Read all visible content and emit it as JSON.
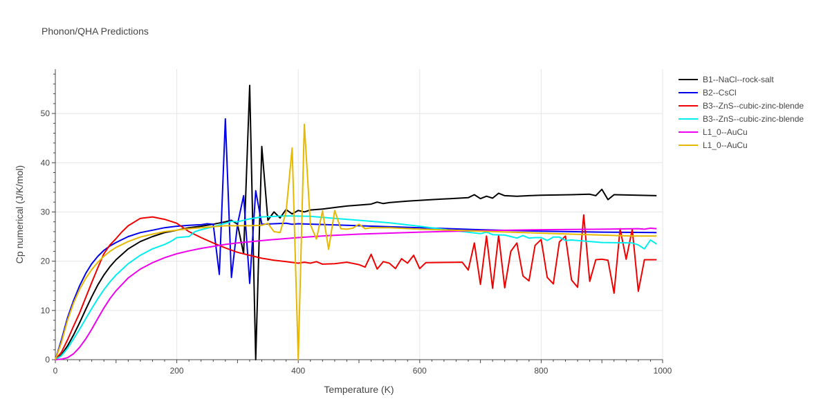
{
  "chart_data": {
    "type": "line",
    "title": "Phonon/QHA Predictions",
    "xlabel": "Temperature (K)",
    "ylabel": "Cp numerical (J/K/mol)",
    "xlim": [
      0,
      1000
    ],
    "ylim": [
      0,
      59
    ],
    "xticks": [
      0,
      200,
      400,
      600,
      800,
      1000
    ],
    "yticks": [
      0,
      10,
      20,
      30,
      40,
      50
    ],
    "grid": true,
    "legend_position": "top-right",
    "series": [
      {
        "name": "B1--NaCl--rock-salt",
        "color": "#000000",
        "points": [
          [
            0,
            0
          ],
          [
            10,
            1
          ],
          [
            20,
            2.8
          ],
          [
            30,
            5
          ],
          [
            40,
            7.5
          ],
          [
            50,
            10.2
          ],
          [
            60,
            12.8
          ],
          [
            70,
            15.2
          ],
          [
            80,
            17.2
          ],
          [
            90,
            18.9
          ],
          [
            100,
            20.3
          ],
          [
            120,
            22.5
          ],
          [
            140,
            24
          ],
          [
            160,
            25
          ],
          [
            180,
            25.8
          ],
          [
            200,
            26.3
          ],
          [
            220,
            26.8
          ],
          [
            240,
            27.1
          ],
          [
            260,
            27.5
          ],
          [
            280,
            28
          ],
          [
            290,
            28.3
          ],
          [
            300,
            27.5
          ],
          [
            310,
            21.5
          ],
          [
            320,
            55.7
          ],
          [
            330,
            0
          ],
          [
            340,
            43.3
          ],
          [
            350,
            28.3
          ],
          [
            360,
            30
          ],
          [
            370,
            28.8
          ],
          [
            380,
            30.5
          ],
          [
            390,
            29.6
          ],
          [
            400,
            30.3
          ],
          [
            410,
            30
          ],
          [
            420,
            30.4
          ],
          [
            440,
            30.6
          ],
          [
            460,
            30.9
          ],
          [
            480,
            31.2
          ],
          [
            500,
            31.4
          ],
          [
            520,
            31.6
          ],
          [
            530,
            32
          ],
          [
            540,
            31.7
          ],
          [
            550,
            31.9
          ],
          [
            580,
            32.2
          ],
          [
            620,
            32.5
          ],
          [
            650,
            32.7
          ],
          [
            680,
            32.9
          ],
          [
            690,
            33.5
          ],
          [
            700,
            32.7
          ],
          [
            710,
            33.2
          ],
          [
            720,
            32.8
          ],
          [
            730,
            33.8
          ],
          [
            740,
            33.3
          ],
          [
            760,
            33.2
          ],
          [
            780,
            33.3
          ],
          [
            800,
            33.4
          ],
          [
            850,
            33.5
          ],
          [
            880,
            33.6
          ],
          [
            890,
            33.3
          ],
          [
            900,
            34.6
          ],
          [
            910,
            32.5
          ],
          [
            920,
            33.5
          ],
          [
            990,
            33.3
          ]
        ]
      },
      {
        "name": "B2--CsCl",
        "color": "#0000ee",
        "points": [
          [
            0,
            0
          ],
          [
            10,
            4
          ],
          [
            20,
            8.5
          ],
          [
            30,
            12
          ],
          [
            40,
            15
          ],
          [
            50,
            17.5
          ],
          [
            60,
            19.5
          ],
          [
            70,
            21
          ],
          [
            80,
            22.2
          ],
          [
            90,
            23.1
          ],
          [
            100,
            23.8
          ],
          [
            120,
            25
          ],
          [
            140,
            25.8
          ],
          [
            160,
            26.3
          ],
          [
            180,
            26.8
          ],
          [
            200,
            27.1
          ],
          [
            220,
            27.3
          ],
          [
            240,
            27.4
          ],
          [
            250,
            27.6
          ],
          [
            260,
            27.5
          ],
          [
            270,
            17.3
          ],
          [
            280,
            48.9
          ],
          [
            290,
            16.7
          ],
          [
            300,
            27.5
          ],
          [
            310,
            33.3
          ],
          [
            320,
            15.5
          ],
          [
            330,
            34.3
          ],
          [
            340,
            27.5
          ],
          [
            360,
            27.6
          ],
          [
            380,
            27.7
          ],
          [
            390,
            27.5
          ],
          [
            400,
            27.6
          ],
          [
            450,
            27.4
          ],
          [
            500,
            27.2
          ],
          [
            600,
            26.8
          ],
          [
            700,
            26.4
          ],
          [
            800,
            26.1
          ],
          [
            900,
            25.9
          ],
          [
            990,
            25.8
          ]
        ]
      },
      {
        "name": "B3--ZnS--cubic-zinc-blende",
        "color": "#ee0000",
        "points": [
          [
            0,
            0
          ],
          [
            10,
            1.5
          ],
          [
            20,
            4
          ],
          [
            30,
            6.8
          ],
          [
            40,
            9.5
          ],
          [
            50,
            12.6
          ],
          [
            60,
            15.7
          ],
          [
            70,
            18.7
          ],
          [
            80,
            21.5
          ],
          [
            90,
            23.3
          ],
          [
            100,
            24.6
          ],
          [
            110,
            26
          ],
          [
            120,
            27.2
          ],
          [
            140,
            28.7
          ],
          [
            160,
            29
          ],
          [
            180,
            28.5
          ],
          [
            200,
            27.7
          ],
          [
            220,
            26
          ],
          [
            240,
            24.8
          ],
          [
            260,
            23.7
          ],
          [
            280,
            22.7
          ],
          [
            300,
            21.8
          ],
          [
            320,
            21.2
          ],
          [
            340,
            20.6
          ],
          [
            360,
            20.2
          ],
          [
            380,
            19.9
          ],
          [
            400,
            19.6
          ],
          [
            410,
            19.8
          ],
          [
            420,
            19.6
          ],
          [
            430,
            19.9
          ],
          [
            440,
            19.4
          ],
          [
            460,
            19.5
          ],
          [
            480,
            19.8
          ],
          [
            500,
            19.3
          ],
          [
            510,
            18.8
          ],
          [
            520,
            21.4
          ],
          [
            530,
            18.4
          ],
          [
            540,
            19.9
          ],
          [
            550,
            19.6
          ],
          [
            560,
            18.5
          ],
          [
            570,
            20.5
          ],
          [
            580,
            19.6
          ],
          [
            590,
            21.2
          ],
          [
            600,
            18.5
          ],
          [
            610,
            19.7
          ],
          [
            670,
            19.8
          ],
          [
            680,
            18.2
          ],
          [
            690,
            23.7
          ],
          [
            700,
            15.3
          ],
          [
            710,
            25.1
          ],
          [
            720,
            14.5
          ],
          [
            730,
            25.3
          ],
          [
            740,
            14.6
          ],
          [
            750,
            22
          ],
          [
            760,
            23.7
          ],
          [
            770,
            17
          ],
          [
            780,
            16
          ],
          [
            790,
            23.2
          ],
          [
            800,
            24.4
          ],
          [
            810,
            16.7
          ],
          [
            820,
            15.4
          ],
          [
            830,
            23.9
          ],
          [
            840,
            25.1
          ],
          [
            850,
            16.2
          ],
          [
            860,
            14.7
          ],
          [
            870,
            29.4
          ],
          [
            880,
            15.9
          ],
          [
            890,
            20.3
          ],
          [
            900,
            20.4
          ],
          [
            910,
            20.2
          ],
          [
            920,
            13.5
          ],
          [
            930,
            26.6
          ],
          [
            940,
            20.4
          ],
          [
            950,
            26.5
          ],
          [
            960,
            13.9
          ],
          [
            970,
            20.3
          ],
          [
            990,
            20.3
          ]
        ]
      },
      {
        "name": "B3--ZnS--cubic-zinc-blende",
        "color": "#00eeee",
        "points": [
          [
            0,
            0
          ],
          [
            10,
            0.8
          ],
          [
            20,
            2.3
          ],
          [
            30,
            4.2
          ],
          [
            40,
            6.2
          ],
          [
            50,
            8.3
          ],
          [
            60,
            10.4
          ],
          [
            70,
            12.4
          ],
          [
            80,
            14.2
          ],
          [
            90,
            15.8
          ],
          [
            100,
            17.2
          ],
          [
            120,
            19.5
          ],
          [
            140,
            21.2
          ],
          [
            160,
            22.5
          ],
          [
            180,
            23.4
          ],
          [
            190,
            24
          ],
          [
            200,
            24.8
          ],
          [
            220,
            25
          ],
          [
            230,
            26
          ],
          [
            240,
            26.4
          ],
          [
            260,
            27
          ],
          [
            280,
            27.7
          ],
          [
            290,
            28.1
          ],
          [
            300,
            28
          ],
          [
            320,
            28.6
          ],
          [
            340,
            29
          ],
          [
            380,
            29.2
          ],
          [
            420,
            29.1
          ],
          [
            450,
            28.8
          ],
          [
            500,
            28.3
          ],
          [
            550,
            27.8
          ],
          [
            600,
            27.1
          ],
          [
            650,
            26.3
          ],
          [
            700,
            25.6
          ],
          [
            710,
            25.9
          ],
          [
            720,
            25.4
          ],
          [
            740,
            25.3
          ],
          [
            750,
            25
          ],
          [
            760,
            24.7
          ],
          [
            770,
            25.2
          ],
          [
            780,
            24.7
          ],
          [
            790,
            24.8
          ],
          [
            800,
            24.8
          ],
          [
            810,
            24.2
          ],
          [
            820,
            24.9
          ],
          [
            830,
            24.9
          ],
          [
            840,
            24.2
          ],
          [
            850,
            24.3
          ],
          [
            900,
            23.8
          ],
          [
            950,
            23.7
          ],
          [
            960,
            23.3
          ],
          [
            970,
            22.5
          ],
          [
            980,
            24.3
          ],
          [
            990,
            23.5
          ]
        ]
      },
      {
        "name": "L1_0--AuCu",
        "color": "#ee00ee",
        "points": [
          [
            0,
            0
          ],
          [
            10,
            0.1
          ],
          [
            20,
            0.4
          ],
          [
            30,
            1.2
          ],
          [
            40,
            2.5
          ],
          [
            50,
            4.2
          ],
          [
            60,
            6.2
          ],
          [
            70,
            8.4
          ],
          [
            80,
            10.5
          ],
          [
            90,
            12.4
          ],
          [
            100,
            14
          ],
          [
            120,
            16.6
          ],
          [
            140,
            18.4
          ],
          [
            160,
            19.7
          ],
          [
            180,
            20.7
          ],
          [
            200,
            21.5
          ],
          [
            220,
            22.1
          ],
          [
            240,
            22.6
          ],
          [
            260,
            23
          ],
          [
            280,
            23.4
          ],
          [
            300,
            23.7
          ],
          [
            350,
            24.3
          ],
          [
            400,
            24.8
          ],
          [
            450,
            25.2
          ],
          [
            500,
            25.5
          ],
          [
            600,
            25.9
          ],
          [
            700,
            26.2
          ],
          [
            800,
            26.4
          ],
          [
            900,
            26.5
          ],
          [
            960,
            26.6
          ],
          [
            970,
            26.5
          ],
          [
            980,
            26.7
          ],
          [
            990,
            26.6
          ]
        ]
      },
      {
        "name": "L1_0--AuCu",
        "color": "#e6b800",
        "points": [
          [
            0,
            0
          ],
          [
            10,
            3.5
          ],
          [
            20,
            8
          ],
          [
            30,
            11.5
          ],
          [
            40,
            14.3
          ],
          [
            50,
            16.5
          ],
          [
            60,
            18.3
          ],
          [
            70,
            19.8
          ],
          [
            80,
            21
          ],
          [
            90,
            22
          ],
          [
            100,
            22.8
          ],
          [
            120,
            24
          ],
          [
            140,
            24.9
          ],
          [
            160,
            25.5
          ],
          [
            180,
            26
          ],
          [
            200,
            26.3
          ],
          [
            220,
            26.6
          ],
          [
            240,
            26.8
          ],
          [
            260,
            27
          ],
          [
            280,
            27.2
          ],
          [
            300,
            27.2
          ],
          [
            320,
            27.2
          ],
          [
            340,
            27.3
          ],
          [
            350,
            27.7
          ],
          [
            360,
            26
          ],
          [
            370,
            25.8
          ],
          [
            380,
            30
          ],
          [
            390,
            43
          ],
          [
            400,
            0
          ],
          [
            410,
            47.8
          ],
          [
            420,
            27.4
          ],
          [
            430,
            24.5
          ],
          [
            440,
            30.2
          ],
          [
            450,
            22.4
          ],
          [
            460,
            30.3
          ],
          [
            470,
            26.6
          ],
          [
            480,
            26.5
          ],
          [
            490,
            26.7
          ],
          [
            500,
            27.5
          ],
          [
            510,
            26.6
          ],
          [
            520,
            26.8
          ],
          [
            550,
            26.8
          ],
          [
            600,
            26.5
          ],
          [
            650,
            26.3
          ],
          [
            700,
            26.1
          ],
          [
            750,
            25.9
          ],
          [
            800,
            25.7
          ],
          [
            850,
            25.5
          ],
          [
            900,
            25.3
          ],
          [
            950,
            25.1
          ],
          [
            990,
            25.1
          ]
        ]
      }
    ]
  }
}
